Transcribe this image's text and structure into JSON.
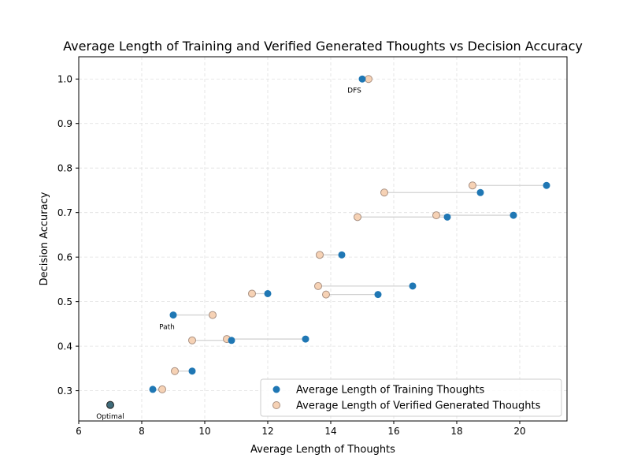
{
  "chart_data": {
    "type": "scatter",
    "title": "Average Length of Training and Verified Generated Thoughts vs Decision Accuracy",
    "xlabel": "Average Length of Thoughts",
    "ylabel": "Decision Accuracy",
    "xlim": [
      6,
      21.5
    ],
    "ylim": [
      0.232,
      1.05
    ],
    "xticks": [
      6,
      8,
      10,
      12,
      14,
      16,
      18,
      20
    ],
    "yticks": [
      0.3,
      0.4,
      0.5,
      0.6,
      0.7,
      0.8,
      0.9,
      1.0
    ],
    "grid": true,
    "legend_position": "lower-right",
    "colors": {
      "training": "#1f77b4",
      "generated_fill": "#f6d2b5",
      "generated_edge": "#a88f80",
      "connector": "#d3d3d3",
      "optimal": "#3f6b7a",
      "grid": "#e0e0e0"
    },
    "series": [
      {
        "name": "Average Length of Training Thoughts",
        "points": [
          {
            "x": 15.0,
            "y": 1.0
          },
          {
            "x": 20.85,
            "y": 0.761
          },
          {
            "x": 18.75,
            "y": 0.745
          },
          {
            "x": 19.8,
            "y": 0.694
          },
          {
            "x": 17.7,
            "y": 0.69
          },
          {
            "x": 14.35,
            "y": 0.605
          },
          {
            "x": 16.6,
            "y": 0.535
          },
          {
            "x": 12.0,
            "y": 0.518
          },
          {
            "x": 15.5,
            "y": 0.516
          },
          {
            "x": 9.0,
            "y": 0.47
          },
          {
            "x": 13.2,
            "y": 0.416
          },
          {
            "x": 10.85,
            "y": 0.413
          },
          {
            "x": 9.6,
            "y": 0.344
          },
          {
            "x": 8.35,
            "y": 0.303
          }
        ]
      },
      {
        "name": "Average Length of Verified Generated Thoughts",
        "points": [
          {
            "x": 15.2,
            "y": 1.0
          },
          {
            "x": 18.5,
            "y": 0.761
          },
          {
            "x": 15.7,
            "y": 0.745
          },
          {
            "x": 17.35,
            "y": 0.694
          },
          {
            "x": 14.85,
            "y": 0.69
          },
          {
            "x": 13.65,
            "y": 0.605
          },
          {
            "x": 13.6,
            "y": 0.535
          },
          {
            "x": 11.5,
            "y": 0.518
          },
          {
            "x": 13.85,
            "y": 0.516
          },
          {
            "x": 10.25,
            "y": 0.47
          },
          {
            "x": 10.7,
            "y": 0.416
          },
          {
            "x": 9.6,
            "y": 0.413
          },
          {
            "x": 9.05,
            "y": 0.344
          },
          {
            "x": 8.65,
            "y": 0.303
          }
        ]
      }
    ],
    "optimal_point": {
      "x": 7.0,
      "y": 0.268
    },
    "annotations": [
      {
        "text": "DFS",
        "x": 14.75,
        "y": 0.975
      },
      {
        "text": "Path",
        "x": 8.8,
        "y": 0.444
      },
      {
        "text": "Optimal",
        "x": 7.0,
        "y": 0.243
      }
    ]
  }
}
